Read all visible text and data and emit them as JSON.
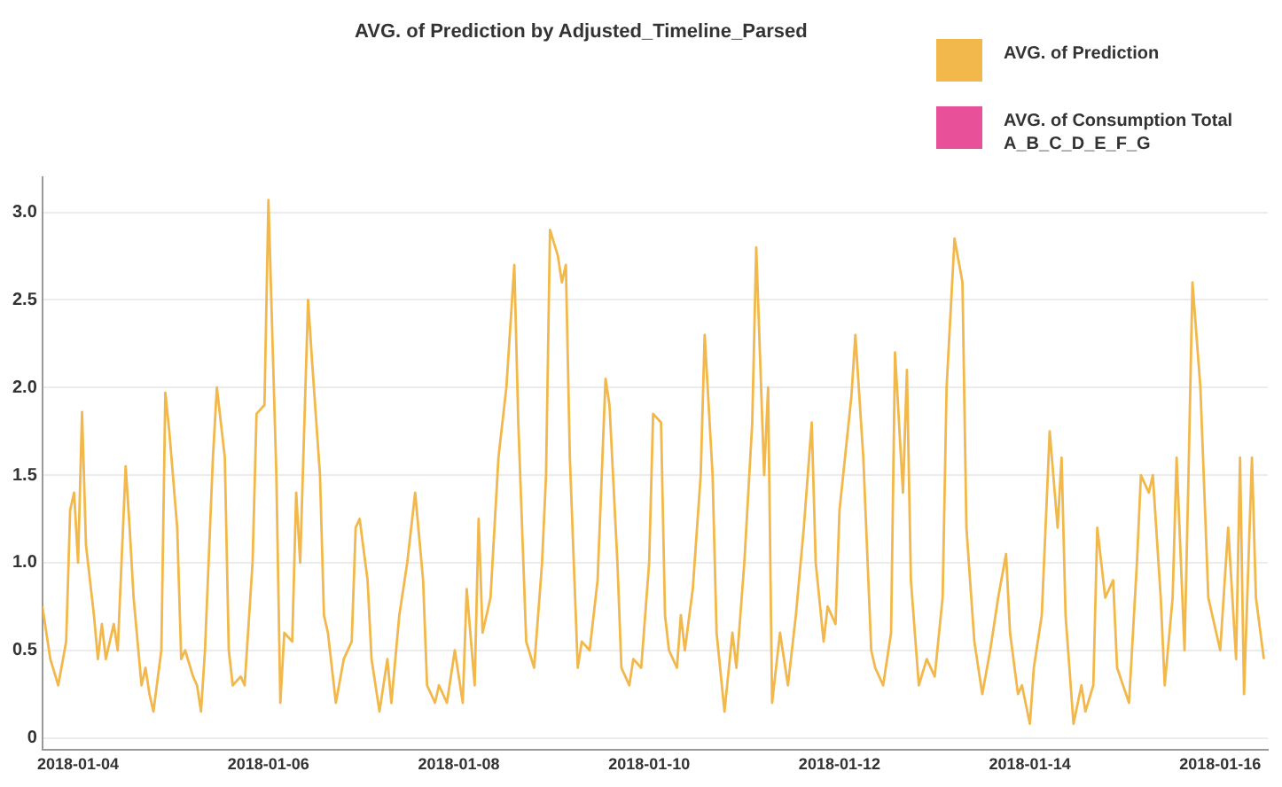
{
  "chart_data": {
    "type": "line",
    "title": "AVG. of Prediction by Adjusted_Timeline_Parsed",
    "legend": "top right",
    "grid": "y",
    "marker": "none",
    "line_style": "solid",
    "xlim": [
      "2018-01-03T15:00",
      "2018-01-16T12:00"
    ],
    "xticks": [
      "2018-01-04",
      "2018-01-06",
      "2018-01-08",
      "2018-01-10",
      "2018-01-12",
      "2018-01-14",
      "2018-01-16"
    ],
    "ylim": [
      -0.07,
      3.2
    ],
    "yticks": [
      0,
      0.5,
      {
        "value": 1,
        "label": "1.0"
      },
      1.5,
      {
        "value": 2,
        "label": "2.0"
      },
      2.5,
      {
        "value": 3,
        "label": "3.0"
      }
    ],
    "series": [
      {
        "name": "AVG. of Prediction",
        "color": "#f2b84b",
        "x": [
          "2018-01-03T15:00",
          "2018-01-03T17:00",
          "2018-01-03T19:00",
          "2018-01-03T21:00",
          "2018-01-03T22:00",
          "2018-01-03T23:00",
          "2018-01-04T00:00",
          "2018-01-04T01:00",
          "2018-01-04T02:00",
          "2018-01-04T04:00",
          "2018-01-04T05:00",
          "2018-01-04T06:00",
          "2018-01-04T07:00",
          "2018-01-04T09:00",
          "2018-01-04T10:00",
          "2018-01-04T12:00",
          "2018-01-04T13:00",
          "2018-01-04T14:00",
          "2018-01-04T16:00",
          "2018-01-04T17:00",
          "2018-01-04T18:00",
          "2018-01-04T19:00",
          "2018-01-04T21:00",
          "2018-01-04T22:00",
          "2018-01-04T23:00",
          "2018-01-05T01:00",
          "2018-01-05T02:00",
          "2018-01-05T03:00",
          "2018-01-05T05:00",
          "2018-01-05T06:00",
          "2018-01-05T07:00",
          "2018-01-05T08:00",
          "2018-01-05T10:00",
          "2018-01-05T11:00",
          "2018-01-05T13:00",
          "2018-01-05T14:00",
          "2018-01-05T15:00",
          "2018-01-05T17:00",
          "2018-01-05T18:00",
          "2018-01-05T20:00",
          "2018-01-05T21:00",
          "2018-01-05T23:00",
          "2018-01-06T00:00",
          "2018-01-06T02:00",
          "2018-01-06T03:00",
          "2018-01-06T04:00",
          "2018-01-06T06:00",
          "2018-01-06T07:00",
          "2018-01-06T08:00",
          "2018-01-06T10:00",
          "2018-01-06T11:00",
          "2018-01-06T13:00",
          "2018-01-06T14:00",
          "2018-01-06T15:00",
          "2018-01-06T17:00",
          "2018-01-06T19:00",
          "2018-01-06T21:00",
          "2018-01-06T22:00",
          "2018-01-06T23:00",
          "2018-01-07T01:00",
          "2018-01-07T02:00",
          "2018-01-07T04:00",
          "2018-01-07T06:00",
          "2018-01-07T07:00",
          "2018-01-07T09:00",
          "2018-01-07T11:00",
          "2018-01-07T13:00",
          "2018-01-07T15:00",
          "2018-01-07T16:00",
          "2018-01-07T18:00",
          "2018-01-07T19:00",
          "2018-01-07T21:00",
          "2018-01-07T23:00",
          "2018-01-08T01:00",
          "2018-01-08T02:00",
          "2018-01-08T04:00",
          "2018-01-08T05:00",
          "2018-01-08T06:00",
          "2018-01-08T08:00",
          "2018-01-08T10:00",
          "2018-01-08T12:00",
          "2018-01-08T14:00",
          "2018-01-08T15:00",
          "2018-01-08T17:00",
          "2018-01-08T19:00",
          "2018-01-08T21:00",
          "2018-01-08T22:00",
          "2018-01-08T23:00",
          "2018-01-09T01:00",
          "2018-01-09T02:00",
          "2018-01-09T03:00",
          "2018-01-09T04:00",
          "2018-01-09T06:00",
          "2018-01-09T07:00",
          "2018-01-09T09:00",
          "2018-01-09T11:00",
          "2018-01-09T13:00",
          "2018-01-09T14:00",
          "2018-01-09T16:00",
          "2018-01-09T17:00",
          "2018-01-09T19:00",
          "2018-01-09T20:00",
          "2018-01-09T22:00",
          "2018-01-10T00:00",
          "2018-01-10T01:00",
          "2018-01-10T03:00",
          "2018-01-10T04:00",
          "2018-01-10T05:00",
          "2018-01-10T07:00",
          "2018-01-10T08:00",
          "2018-01-10T09:00",
          "2018-01-10T11:00",
          "2018-01-10T13:00",
          "2018-01-10T14:00",
          "2018-01-10T16:00",
          "2018-01-10T17:00",
          "2018-01-10T19:00",
          "2018-01-10T21:00",
          "2018-01-10T22:00",
          "2018-01-11T00:00",
          "2018-01-11T02:00",
          "2018-01-11T03:00",
          "2018-01-11T05:00",
          "2018-01-11T06:00",
          "2018-01-11T07:00",
          "2018-01-11T09:00",
          "2018-01-11T11:00",
          "2018-01-11T13:00",
          "2018-01-11T15:00",
          "2018-01-11T17:00",
          "2018-01-11T18:00",
          "2018-01-11T20:00",
          "2018-01-11T21:00",
          "2018-01-11T23:00",
          "2018-01-12T00:00",
          "2018-01-12T03:00",
          "2018-01-12T04:00",
          "2018-01-12T06:00",
          "2018-01-12T08:00",
          "2018-01-12T09:00",
          "2018-01-12T11:00",
          "2018-01-12T13:00",
          "2018-01-12T14:00",
          "2018-01-12T16:00",
          "2018-01-12T17:00",
          "2018-01-12T18:00",
          "2018-01-12T20:00",
          "2018-01-12T22:00",
          "2018-01-13T00:00",
          "2018-01-13T02:00",
          "2018-01-13T03:00",
          "2018-01-13T05:00",
          "2018-01-13T07:00",
          "2018-01-13T08:00",
          "2018-01-13T10:00",
          "2018-01-13T12:00",
          "2018-01-13T14:00",
          "2018-01-13T16:00",
          "2018-01-13T18:00",
          "2018-01-13T19:00",
          "2018-01-13T21:00",
          "2018-01-13T22:00",
          "2018-01-14T00:00",
          "2018-01-14T01:00",
          "2018-01-14T03:00",
          "2018-01-14T05:00",
          "2018-01-14T07:00",
          "2018-01-14T08:00",
          "2018-01-14T09:00",
          "2018-01-14T11:00",
          "2018-01-14T13:00",
          "2018-01-14T14:00",
          "2018-01-14T16:00",
          "2018-01-14T17:00",
          "2018-01-14T19:00",
          "2018-01-14T21:00",
          "2018-01-14T22:00",
          "2018-01-15T01:00",
          "2018-01-15T03:00",
          "2018-01-15T04:00",
          "2018-01-15T06:00",
          "2018-01-15T07:00",
          "2018-01-15T09:00",
          "2018-01-15T10:00",
          "2018-01-15T12:00",
          "2018-01-15T13:00",
          "2018-01-15T15:00",
          "2018-01-15T16:00",
          "2018-01-15T17:00",
          "2018-01-15T19:00",
          "2018-01-15T21:00",
          "2018-01-15T23:00",
          "2018-01-16T00:00",
          "2018-01-16T02:00",
          "2018-01-16T04:00",
          "2018-01-16T05:00",
          "2018-01-16T06:00",
          "2018-01-16T08:00",
          "2018-01-16T09:00",
          "2018-01-16T11:00"
        ],
        "values": [
          0.75,
          0.45,
          0.3,
          0.55,
          1.3,
          1.4,
          1.0,
          1.86,
          1.1,
          0.7,
          0.45,
          0.65,
          0.45,
          0.65,
          0.5,
          1.55,
          1.2,
          0.8,
          0.3,
          0.4,
          0.25,
          0.15,
          0.5,
          1.97,
          1.75,
          1.2,
          0.45,
          0.5,
          0.35,
          0.3,
          0.15,
          0.5,
          1.6,
          2.0,
          1.6,
          0.5,
          0.3,
          0.35,
          0.3,
          1.0,
          1.85,
          1.9,
          3.07,
          1.5,
          0.2,
          0.6,
          0.55,
          1.4,
          1.0,
          2.5,
          2.15,
          1.5,
          0.7,
          0.6,
          0.2,
          0.45,
          0.55,
          1.2,
          1.25,
          0.9,
          0.45,
          0.15,
          0.45,
          0.2,
          0.7,
          1.0,
          1.4,
          0.9,
          0.3,
          0.2,
          0.3,
          0.2,
          0.5,
          0.2,
          0.85,
          0.3,
          1.25,
          0.6,
          0.8,
          1.6,
          2.0,
          2.7,
          1.8,
          0.55,
          0.4,
          1.0,
          1.5,
          2.9,
          2.75,
          2.6,
          2.7,
          1.6,
          0.4,
          0.55,
          0.5,
          0.9,
          2.05,
          1.9,
          1.0,
          0.4,
          0.3,
          0.45,
          0.4,
          1.0,
          1.85,
          1.8,
          0.7,
          0.5,
          0.4,
          0.7,
          0.5,
          0.85,
          1.5,
          2.3,
          1.5,
          0.6,
          0.15,
          0.6,
          0.4,
          1.0,
          1.8,
          2.8,
          1.5,
          2.0,
          0.2,
          0.6,
          0.3,
          0.7,
          1.2,
          1.8,
          1.0,
          0.55,
          0.75,
          0.65,
          1.3,
          1.95,
          2.3,
          1.6,
          0.5,
          0.4,
          0.3,
          0.6,
          2.2,
          1.4,
          2.1,
          0.9,
          0.3,
          0.45,
          0.35,
          0.8,
          2.0,
          2.85,
          2.6,
          1.2,
          0.55,
          0.25,
          0.5,
          0.8,
          1.05,
          0.6,
          0.25,
          0.3,
          0.08,
          0.4,
          0.7,
          1.75,
          1.2,
          1.6,
          0.7,
          0.08,
          0.3,
          0.15,
          0.3,
          1.2,
          0.8,
          0.9,
          0.4,
          0.2,
          1.0,
          1.5,
          1.4,
          1.5,
          0.8,
          0.3,
          0.8,
          1.6,
          0.5,
          1.5,
          2.6,
          2.0,
          0.8,
          0.6,
          0.5,
          1.2,
          0.45,
          1.6,
          0.25,
          1.6,
          0.8,
          0.45
        ]
      },
      {
        "name": "AVG. of Consumption Total A_B_C_D_E_F_G",
        "color": "#e8509a"
      }
    ]
  }
}
